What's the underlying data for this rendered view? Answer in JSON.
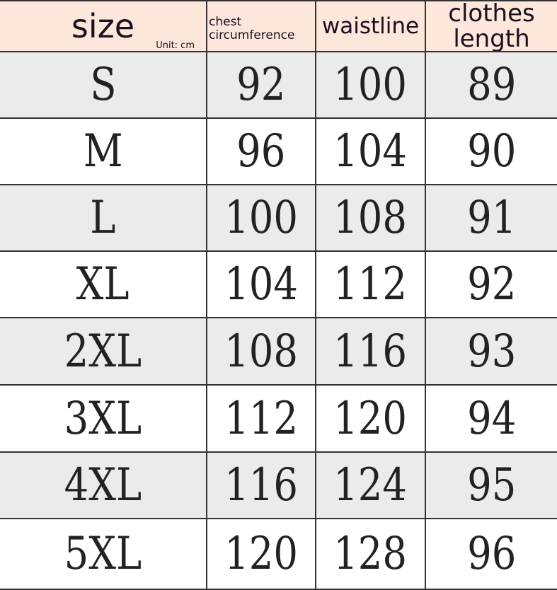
{
  "header": {
    "size": "size",
    "unit": "Unit: cm",
    "chest": "chest circumference",
    "waist": "waistline",
    "length": "clothes length"
  },
  "rows": [
    {
      "size": "S",
      "chest": "92",
      "waist": "100",
      "length": "89"
    },
    {
      "size": "M",
      "chest": "96",
      "waist": "104",
      "length": "90"
    },
    {
      "size": "L",
      "chest": "100",
      "waist": "108",
      "length": "91"
    },
    {
      "size": "XL",
      "chest": "104",
      "waist": "112",
      "length": "92"
    },
    {
      "size": "2XL",
      "chest": "108",
      "waist": "116",
      "length": "93"
    },
    {
      "size": "3XL",
      "chest": "112",
      "waist": "120",
      "length": "94"
    },
    {
      "size": "4XL",
      "chest": "116",
      "waist": "124",
      "length": "95"
    },
    {
      "size": "5XL",
      "chest": "120",
      "waist": "128",
      "length": "96"
    }
  ],
  "colors": {
    "header_bg": "#fde6da",
    "row_alt": "#ebebeb",
    "row": "#ffffff"
  }
}
